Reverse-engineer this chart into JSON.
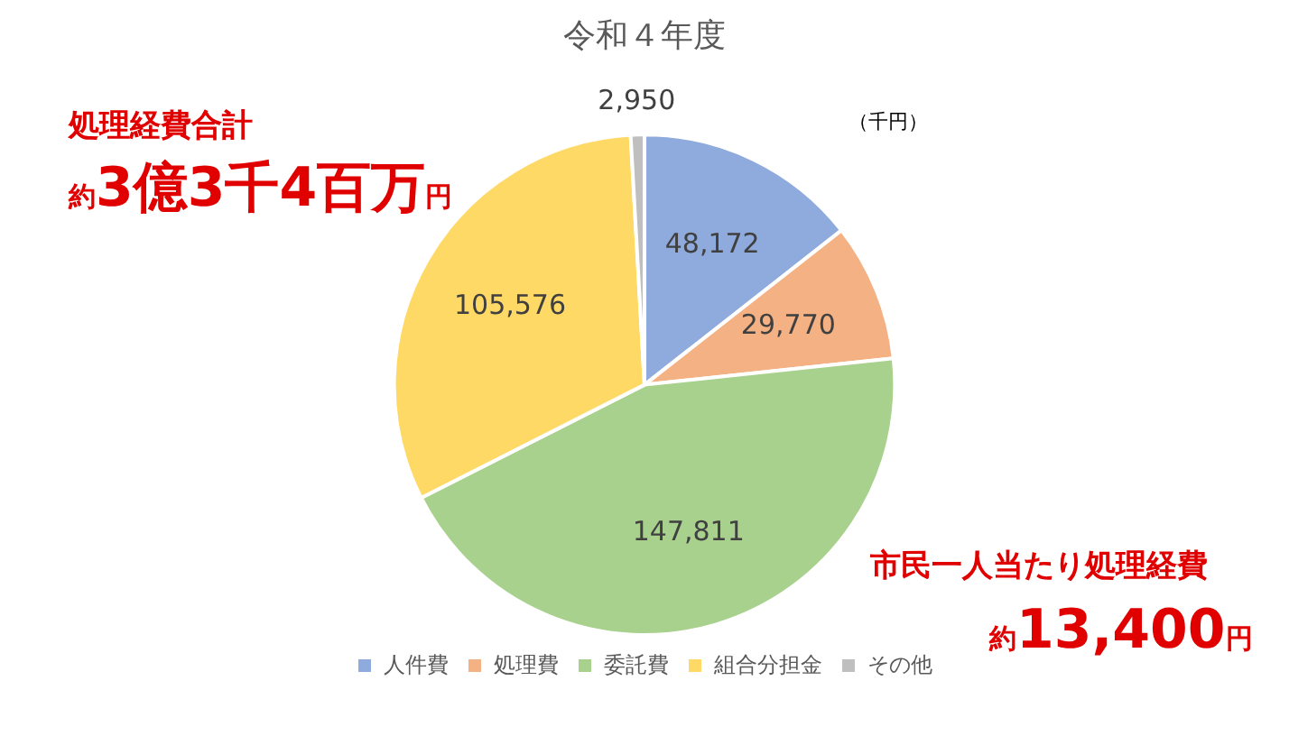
{
  "chart_data": {
    "type": "pie",
    "title": "令和４年度",
    "categories": [
      "人件費",
      "処理費",
      "委託費",
      "組合分担金",
      "その他"
    ],
    "values": [
      48172,
      29770,
      147811,
      105576,
      2950
    ],
    "colors": [
      "#8faadc",
      "#f4b183",
      "#a9d18e",
      "#ffd966",
      "#bfbfbf"
    ],
    "value_labels": [
      "48,172",
      "29,770",
      "147,811",
      "105,576",
      "2,950"
    ],
    "legend": "bottom",
    "annotations": [
      "（千円）",
      "処理経費合計",
      "約3億3千4百万円",
      "市民一人当たり処理経費",
      "約13,400円"
    ]
  }
}
